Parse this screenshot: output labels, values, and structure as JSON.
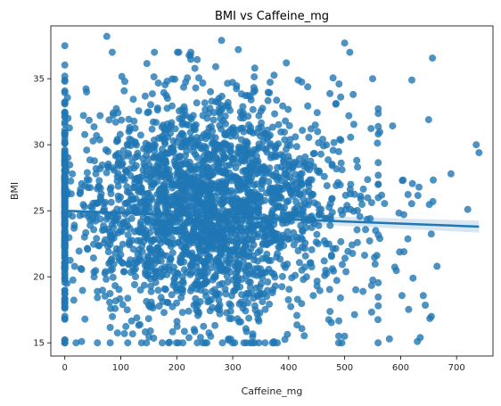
{
  "chart_data": {
    "type": "scatter",
    "title": "BMI vs Caffeine_mg",
    "xlabel": "Caffeine_mg",
    "ylabel": "BMI",
    "xlim": [
      -25,
      765
    ],
    "ylim": [
      14,
      39
    ],
    "xticks": [
      0,
      100,
      200,
      300,
      400,
      500,
      600,
      700
    ],
    "yticks": [
      15,
      20,
      25,
      30,
      35
    ],
    "grid": false,
    "legend": "none",
    "point_color": "#1f77b4",
    "regression": {
      "x": [
        0,
        740
      ],
      "y": [
        25.0,
        23.8
      ]
    },
    "point_cloud": {
      "approx_count": 2600,
      "x_distribution": "mostly 0-500 mg, centered near 250 mg, column of points at 0 mg, sparse up to 740 mg",
      "y_distribution": "centered near 25, spread 15-38",
      "seed": 7
    },
    "notable_points": [
      {
        "x": 0,
        "y": 37.5
      },
      {
        "x": 75,
        "y": 38.2
      },
      {
        "x": 280,
        "y": 37.9
      },
      {
        "x": 500,
        "y": 37.7
      },
      {
        "x": 310,
        "y": 37.2
      },
      {
        "x": 160,
        "y": 37.0
      },
      {
        "x": 490,
        "y": 34.6
      },
      {
        "x": 550,
        "y": 35.0
      },
      {
        "x": 620,
        "y": 34.9
      },
      {
        "x": 650,
        "y": 31.9
      },
      {
        "x": 735,
        "y": 30.0
      },
      {
        "x": 740,
        "y": 29.4
      },
      {
        "x": 690,
        "y": 27.8
      },
      {
        "x": 720,
        "y": 25.1
      },
      {
        "x": 665,
        "y": 20.8
      },
      {
        "x": 655,
        "y": 17.0
      },
      {
        "x": 635,
        "y": 15.4
      },
      {
        "x": 630,
        "y": 15.1
      },
      {
        "x": 580,
        "y": 15.3
      },
      {
        "x": 495,
        "y": 15.0
      },
      {
        "x": 30,
        "y": 15.1
      },
      {
        "x": 20,
        "y": 15.0
      }
    ]
  }
}
